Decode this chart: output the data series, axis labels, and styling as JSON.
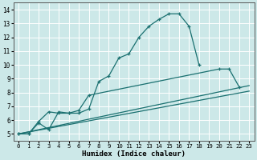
{
  "xlabel": "Humidex (Indice chaleur)",
  "bg_color": "#cce8e8",
  "grid_color": "#ffffff",
  "line_color": "#1a7070",
  "xlim": [
    -0.5,
    23.5
  ],
  "ylim": [
    4.5,
    14.5
  ],
  "xticks": [
    0,
    1,
    2,
    3,
    4,
    5,
    6,
    7,
    8,
    9,
    10,
    11,
    12,
    13,
    14,
    15,
    16,
    17,
    18,
    19,
    20,
    21,
    22,
    23
  ],
  "yticks": [
    5,
    6,
    7,
    8,
    9,
    10,
    11,
    12,
    13,
    14
  ],
  "curve1_x": [
    0,
    1,
    2,
    3,
    4,
    5,
    6,
    7,
    8,
    9,
    10,
    11,
    12,
    13,
    14,
    15,
    16,
    17,
    18
  ],
  "curve1_y": [
    5.0,
    5.0,
    5.8,
    5.3,
    6.6,
    6.5,
    6.5,
    6.8,
    8.8,
    9.2,
    10.5,
    10.8,
    12.0,
    12.8,
    13.3,
    13.7,
    13.7,
    12.8,
    10.0
  ],
  "curve2_x": [
    0,
    1,
    2,
    3,
    4,
    5,
    6,
    7,
    20,
    21,
    22
  ],
  "curve2_y": [
    5.0,
    5.0,
    5.9,
    6.6,
    6.5,
    6.5,
    6.7,
    7.8,
    9.7,
    9.7,
    8.4
  ],
  "line1_x": [
    0,
    23
  ],
  "line1_y": [
    5.0,
    8.5
  ],
  "line2_x": [
    0,
    23
  ],
  "line2_y": [
    5.0,
    8.1
  ]
}
